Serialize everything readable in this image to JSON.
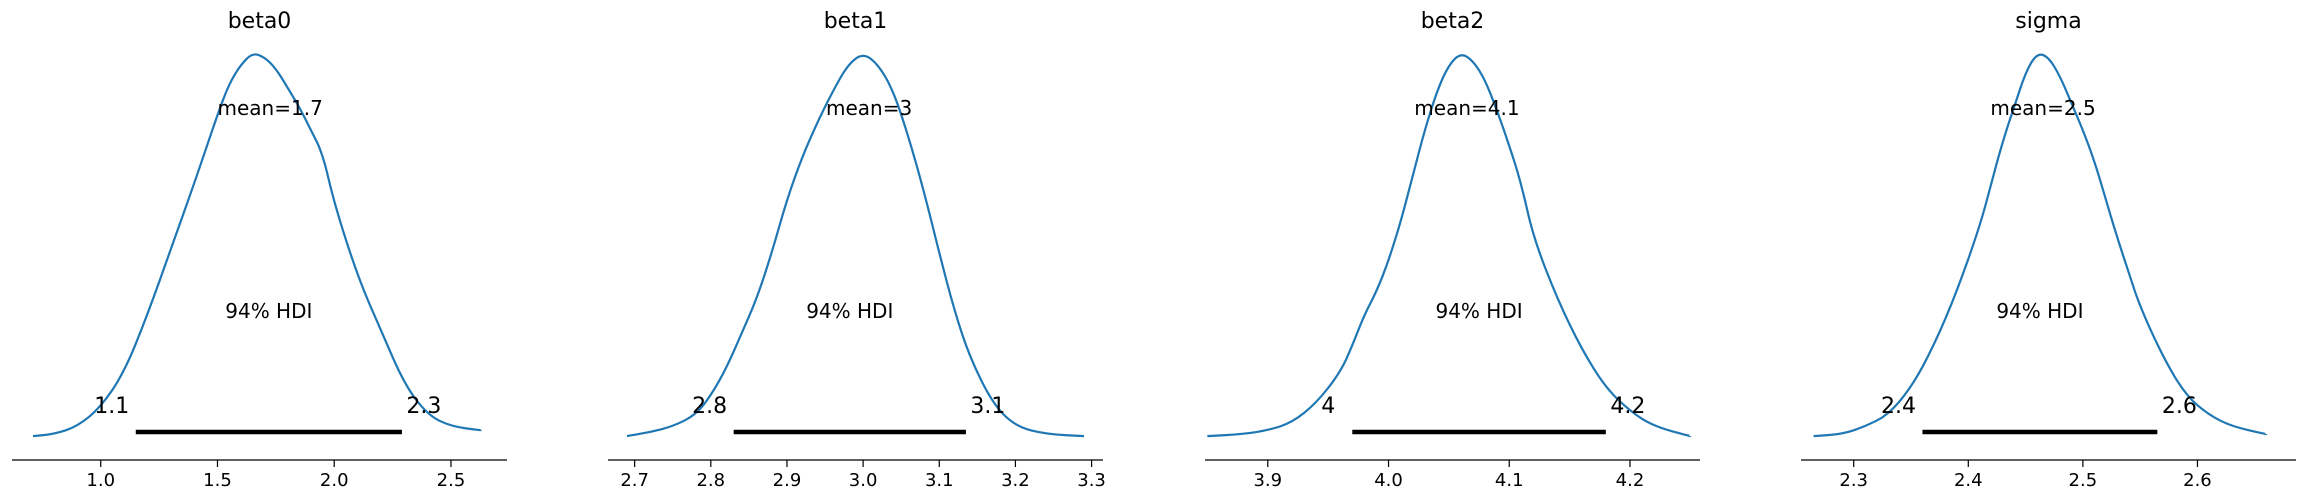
{
  "chart_data": [
    {
      "type": "line",
      "title": "beta0",
      "mean": 1.7,
      "mean_label": "mean=1.7",
      "hdi_label": "94% HDI",
      "hdi": [
        1.15,
        2.29
      ],
      "hdi_labels": [
        "1.1",
        "2.3"
      ],
      "xlim": [
        0.62,
        2.74
      ],
      "ylim": [
        0,
        1.0
      ],
      "ticks": [
        1.0,
        1.5,
        2.0,
        2.5
      ],
      "tick_labels": [
        "1.0",
        "1.5",
        "2.0",
        "2.5"
      ],
      "color": "#1f77b4",
      "x": [
        0.71,
        0.8,
        0.9,
        1.0,
        1.1,
        1.2,
        1.3,
        1.4,
        1.5,
        1.55,
        1.6,
        1.65,
        1.7,
        1.75,
        1.8,
        1.85,
        1.9,
        1.95,
        2.0,
        2.1,
        2.2,
        2.3,
        2.4,
        2.5,
        2.63
      ],
      "density": [
        0.005,
        0.01,
        0.03,
        0.08,
        0.17,
        0.32,
        0.49,
        0.66,
        0.84,
        0.92,
        0.97,
        1.0,
        0.99,
        0.96,
        0.91,
        0.86,
        0.8,
        0.74,
        0.61,
        0.42,
        0.28,
        0.14,
        0.06,
        0.03,
        0.02
      ]
    },
    {
      "type": "line",
      "title": "beta1",
      "mean": 3.0,
      "mean_label": "mean=3",
      "hdi_label": "94% HDI",
      "hdi": [
        2.83,
        3.135
      ],
      "hdi_labels": [
        "2.8",
        "3.1"
      ],
      "xlim": [
        2.665,
        3.315
      ],
      "ylim": [
        0,
        1.0
      ],
      "ticks": [
        2.7,
        2.8,
        2.9,
        3.0,
        3.1,
        3.2,
        3.3
      ],
      "tick_labels": [
        "2.7",
        "2.8",
        "2.9",
        "3.0",
        "3.1",
        "3.2",
        "3.3"
      ],
      "color": "#1f77b4",
      "x": [
        2.69,
        2.72,
        2.75,
        2.78,
        2.8,
        2.82,
        2.84,
        2.86,
        2.88,
        2.9,
        2.92,
        2.94,
        2.96,
        2.98,
        3.0,
        3.02,
        3.04,
        3.06,
        3.08,
        3.1,
        3.12,
        3.14,
        3.17,
        3.2,
        3.24,
        3.29
      ],
      "density": [
        0.005,
        0.015,
        0.03,
        0.06,
        0.11,
        0.18,
        0.27,
        0.36,
        0.48,
        0.62,
        0.73,
        0.82,
        0.9,
        0.97,
        1.0,
        0.97,
        0.9,
        0.78,
        0.64,
        0.48,
        0.33,
        0.21,
        0.09,
        0.03,
        0.01,
        0.005
      ]
    },
    {
      "type": "line",
      "title": "beta2",
      "mean": 4.06,
      "mean_label": "mean=4.1",
      "hdi_label": "94% HDI",
      "hdi": [
        3.97,
        4.18
      ],
      "hdi_labels": [
        "4",
        "4.2"
      ],
      "xlim": [
        3.848,
        4.258
      ],
      "ylim": [
        0,
        1.0
      ],
      "ticks": [
        3.9,
        4.0,
        4.1,
        4.2
      ],
      "tick_labels": [
        "3.9",
        "4.0",
        "4.1",
        "4.2"
      ],
      "color": "#1f77b4",
      "x": [
        3.85,
        3.88,
        3.9,
        3.92,
        3.94,
        3.96,
        3.97,
        3.98,
        3.99,
        4.0,
        4.01,
        4.02,
        4.03,
        4.04,
        4.05,
        4.06,
        4.07,
        4.08,
        4.09,
        4.1,
        4.11,
        4.12,
        4.14,
        4.16,
        4.18,
        4.2,
        4.22,
        4.25
      ],
      "density": [
        0.005,
        0.01,
        0.02,
        0.04,
        0.09,
        0.17,
        0.24,
        0.32,
        0.38,
        0.46,
        0.56,
        0.68,
        0.8,
        0.9,
        0.97,
        1.0,
        0.98,
        0.93,
        0.85,
        0.76,
        0.66,
        0.52,
        0.36,
        0.23,
        0.13,
        0.07,
        0.03,
        0.005
      ]
    },
    {
      "type": "line",
      "title": "sigma",
      "mean": 2.46,
      "mean_label": "mean=2.5",
      "hdi_label": "94% HDI",
      "hdi": [
        2.36,
        2.565
      ],
      "hdi_labels": [
        "2.4",
        "2.6"
      ],
      "xlim": [
        2.254,
        2.686
      ],
      "ylim": [
        0,
        1.0
      ],
      "ticks": [
        2.3,
        2.4,
        2.5,
        2.6
      ],
      "tick_labels": [
        "2.3",
        "2.4",
        "2.5",
        "2.6"
      ],
      "color": "#1f77b4",
      "x": [
        2.265,
        2.29,
        2.31,
        2.33,
        2.35,
        2.37,
        2.39,
        2.41,
        2.42,
        2.43,
        2.44,
        2.45,
        2.46,
        2.47,
        2.48,
        2.49,
        2.5,
        2.51,
        2.52,
        2.53,
        2.54,
        2.55,
        2.57,
        2.59,
        2.61,
        2.63,
        2.66
      ],
      "density": [
        0.005,
        0.01,
        0.03,
        0.06,
        0.13,
        0.24,
        0.38,
        0.55,
        0.66,
        0.77,
        0.86,
        0.95,
        1.0,
        0.99,
        0.94,
        0.87,
        0.8,
        0.72,
        0.62,
        0.52,
        0.43,
        0.34,
        0.21,
        0.11,
        0.06,
        0.03,
        0.01
      ]
    }
  ]
}
